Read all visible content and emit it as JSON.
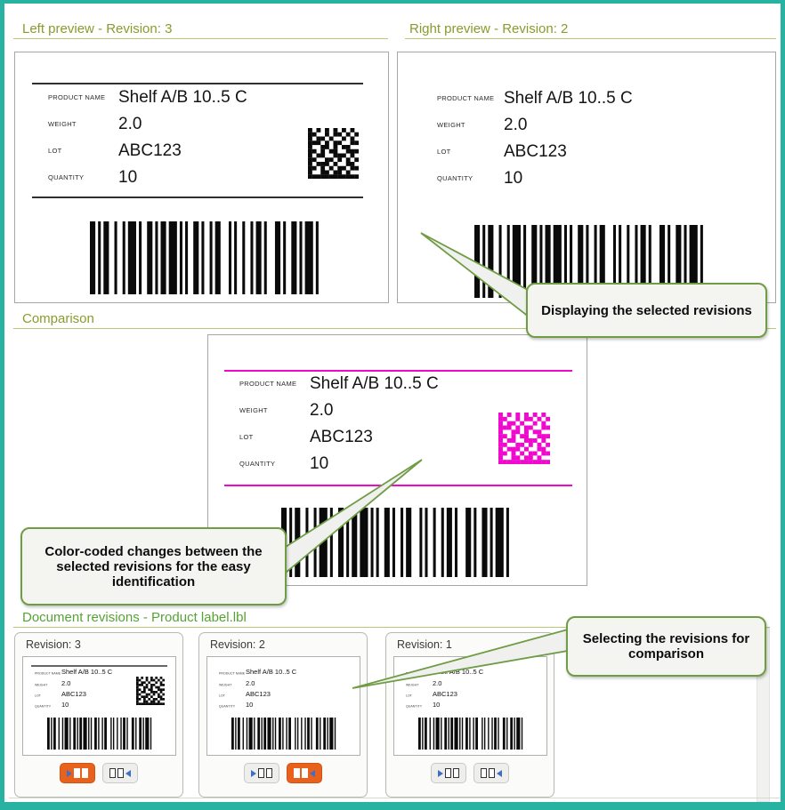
{
  "headers": {
    "left_preview": "Left preview - Revision: 3",
    "right_preview": "Right preview - Revision: 2",
    "comparison": "Comparison",
    "revisions": "Document revisions - Product label.lbl"
  },
  "label": {
    "fields": [
      {
        "name": "PRODUCT NAME",
        "value": "Shelf A/B 10..5 C"
      },
      {
        "name": "WEIGHT",
        "value": "2.0"
      },
      {
        "name": "LOT",
        "value": "ABC123"
      },
      {
        "name": "QUANTITY",
        "value": "10"
      }
    ]
  },
  "callouts": {
    "displaying": "Displaying the selected revisions",
    "color_coded": "Color-coded changes between the selected revisions for the easy identification",
    "selecting": "Selecting the revisions for comparison"
  },
  "revision_cards": [
    {
      "title": "Revision: 3",
      "active_side": "left"
    },
    {
      "title": "Revision: 2",
      "active_side": "right"
    },
    {
      "title": "Revision: 1",
      "active_side": "none"
    }
  ],
  "icons": {
    "scroll_up": "▲"
  },
  "colors": {
    "frame_teal": "#28b2a2",
    "header_olive": "#8a9b2b",
    "header_green": "#55a433",
    "active_button_orange": "#e8611d",
    "diff_magenta": "#f108cf",
    "callout_border_green": "#6f9d45",
    "arrow_blue": "#3f6fc4"
  }
}
